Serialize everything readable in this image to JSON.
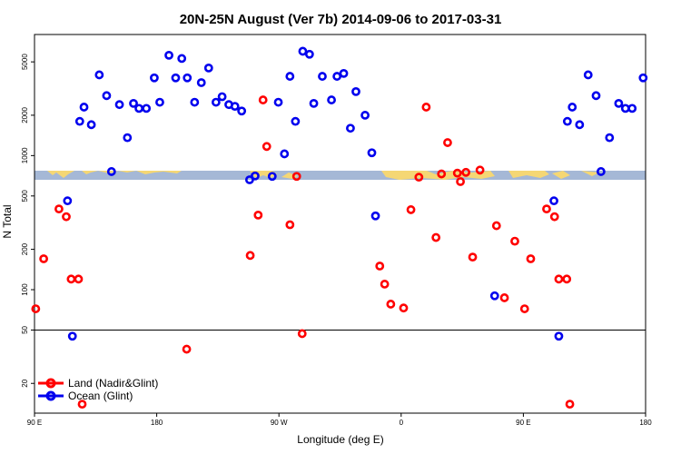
{
  "chart_data": {
    "type": "scatter",
    "title": "20N-25N August (Ver 7b)   2014-09-06 to 2017-03-31",
    "xlabel": "Longitude (deg E)",
    "ylabel": "N Total",
    "y_scale": "log",
    "ylim": [
      12,
      8000
    ],
    "xlim": [
      0,
      100
    ],
    "x_ticks": [
      {
        "pos": 0,
        "label": "90 E"
      },
      {
        "pos": 20,
        "label": "180"
      },
      {
        "pos": 40,
        "label": "90 W"
      },
      {
        "pos": 60,
        "label": "0"
      },
      {
        "pos": 80,
        "label": "90 E"
      },
      {
        "pos": 100,
        "label": "180"
      }
    ],
    "y_ticks": [
      20,
      50,
      100,
      200,
      500,
      1000,
      2000,
      5000
    ],
    "reference_line": 50,
    "colors": {
      "land": "#ff0000",
      "ocean": "#0000ee",
      "map_ocean": "#a5b8d6",
      "map_land": "#f5d774"
    },
    "legend": {
      "position": "bottom-left",
      "entries": [
        "Land (Nadir&Glint)",
        "Ocean (Glint)"
      ]
    },
    "series": [
      {
        "name": "Land (Nadir&Glint)",
        "color": "#ff0000",
        "points": [
          [
            0.2,
            72
          ],
          [
            1.5,
            170
          ],
          [
            4,
            400
          ],
          [
            5.2,
            350
          ],
          [
            6,
            120
          ],
          [
            7.2,
            120
          ],
          [
            7.8,
            14
          ],
          [
            24.9,
            36
          ],
          [
            35.3,
            180
          ],
          [
            36.6,
            360
          ],
          [
            37.4,
            2600
          ],
          [
            38,
            1170
          ],
          [
            41.8,
            305
          ],
          [
            42.9,
            700
          ],
          [
            43.8,
            47
          ],
          [
            56.5,
            150
          ],
          [
            57.3,
            110
          ],
          [
            58.3,
            78
          ],
          [
            60.4,
            73
          ],
          [
            61.6,
            395
          ],
          [
            62.9,
            690
          ],
          [
            64.1,
            2300
          ],
          [
            65.7,
            245
          ],
          [
            66.6,
            730
          ],
          [
            67.6,
            1250
          ],
          [
            69.2,
            740
          ],
          [
            69.7,
            640
          ],
          [
            70.6,
            750
          ],
          [
            71.7,
            175
          ],
          [
            72.9,
            780
          ],
          [
            75.6,
            300
          ],
          [
            76.9,
            87
          ],
          [
            78.6,
            230
          ],
          [
            80.2,
            72
          ],
          [
            81.2,
            170
          ],
          [
            83.8,
            400
          ],
          [
            85.1,
            350
          ],
          [
            85.8,
            120
          ],
          [
            87.1,
            120
          ],
          [
            87.6,
            14
          ]
        ]
      },
      {
        "name": "Ocean (Glint)",
        "color": "#0000ee",
        "points": [
          [
            5.4,
            460
          ],
          [
            6.2,
            45
          ],
          [
            7.4,
            1800
          ],
          [
            8.1,
            2300
          ],
          [
            9.3,
            1700
          ],
          [
            10.6,
            4000
          ],
          [
            11.8,
            2800
          ],
          [
            12.6,
            760
          ],
          [
            13.9,
            2400
          ],
          [
            15.2,
            1360
          ],
          [
            16.2,
            2450
          ],
          [
            17.1,
            2250
          ],
          [
            18.3,
            2250
          ],
          [
            19.6,
            3800
          ],
          [
            20.5,
            2500
          ],
          [
            22,
            5600
          ],
          [
            23.1,
            3800
          ],
          [
            24.1,
            5300
          ],
          [
            25,
            3800
          ],
          [
            26.2,
            2500
          ],
          [
            27.3,
            3500
          ],
          [
            28.5,
            4500
          ],
          [
            29.7,
            2500
          ],
          [
            30.7,
            2750
          ],
          [
            31.8,
            2400
          ],
          [
            32.8,
            2330
          ],
          [
            33.9,
            2150
          ],
          [
            35.2,
            660
          ],
          [
            36.1,
            705
          ],
          [
            38.9,
            700
          ],
          [
            39.9,
            2500
          ],
          [
            40.9,
            1030
          ],
          [
            41.8,
            3900
          ],
          [
            42.7,
            1800
          ],
          [
            43.9,
            6000
          ],
          [
            45,
            5700
          ],
          [
            45.7,
            2450
          ],
          [
            47.1,
            3900
          ],
          [
            48.6,
            2600
          ],
          [
            49.5,
            3900
          ],
          [
            50.6,
            4100
          ],
          [
            51.7,
            1600
          ],
          [
            52.6,
            3000
          ],
          [
            54.1,
            2000
          ],
          [
            55.2,
            1050
          ],
          [
            55.8,
            355
          ],
          [
            75.3,
            90
          ],
          [
            85,
            460
          ],
          [
            85.8,
            45
          ],
          [
            87.2,
            1800
          ],
          [
            88,
            2300
          ],
          [
            89.2,
            1700
          ],
          [
            90.6,
            4000
          ],
          [
            91.9,
            2800
          ],
          [
            92.7,
            760
          ],
          [
            94.1,
            1360
          ],
          [
            95.6,
            2450
          ],
          [
            96.7,
            2250
          ],
          [
            97.8,
            2250
          ],
          [
            99.6,
            3800
          ]
        ]
      }
    ]
  }
}
